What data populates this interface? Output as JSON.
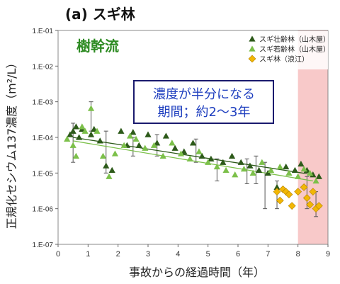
{
  "chart_data": {
    "type": "scatter",
    "panel_title": "(a) スギ林",
    "xlabel": "事故からの経過時間（年）",
    "ylabel": "正規化セシウム137濃度（m²/L）",
    "x_ticks": [
      "0",
      "1",
      "2",
      "3",
      "4",
      "5",
      "6",
      "7",
      "8",
      "9"
    ],
    "y_ticks": [
      "1.E-07",
      "1.E-06",
      "1.E-05",
      "1.E-04",
      "1.E-03",
      "1.E-02",
      "1.E-01"
    ],
    "xlim": [
      0,
      9
    ],
    "ylim": [
      1e-07,
      0.1
    ],
    "y_scale": "log",
    "shaded_region_x": [
      8,
      9
    ],
    "annotation_label": "樹幹流",
    "note_lines": [
      "濃度が半分になる",
      "期間；約2～3年"
    ],
    "legend_position": "top-right",
    "colors": {
      "series_dark": "#2d5a1a",
      "series_light": "#7cc04a",
      "series_yellow": "#f2b705",
      "shade": "#f8c9c9",
      "note_border": "#1a1a6e",
      "label_green": "#2e8b23",
      "note_text": "#1f3fbf"
    },
    "series": [
      {
        "name": "スギ壮齢林（山木屋）",
        "marker": "triangle",
        "color": "#2d5a1a",
        "points": [
          [
            0.4,
            0.00012
          ],
          [
            0.5,
            0.00015
          ],
          [
            0.6,
            0.0002
          ],
          [
            0.7,
            0.0001
          ],
          [
            0.8,
            0.00017
          ],
          [
            1.1,
            0.00012
          ],
          [
            1.2,
            0.00017
          ],
          [
            1.4,
            8e-05
          ],
          [
            1.6,
            1.6e-05
          ],
          [
            1.8,
            1.2e-05
          ],
          [
            2.1,
            0.00015
          ],
          [
            2.3,
            6e-05
          ],
          [
            2.5,
            0.00014
          ],
          [
            2.7,
            6e-05
          ],
          [
            3.0,
            0.00012
          ],
          [
            3.3,
            7e-05
          ],
          [
            3.6,
            0.00011
          ],
          [
            3.9,
            5e-05
          ],
          [
            4.2,
            4e-05
          ],
          [
            4.5,
            7e-05
          ],
          [
            4.8,
            3e-05
          ],
          [
            5.1,
            2.5e-05
          ],
          [
            5.5,
            2e-05
          ],
          [
            5.8,
            3e-05
          ],
          [
            6.1,
            2e-05
          ],
          [
            6.4,
            1.6e-05
          ],
          [
            6.7,
            1.2e-05
          ],
          [
            7.0,
            1e-05
          ],
          [
            7.3,
            4e-06
          ],
          [
            7.6,
            1.5e-05
          ],
          [
            7.9,
            1.2e-05
          ],
          [
            8.1,
            1.8e-05
          ],
          [
            8.3,
            1.2e-05
          ],
          [
            8.5,
            9e-06
          ],
          [
            8.7,
            8e-06
          ]
        ]
      },
      {
        "name": "スギ若齢林（山木屋）",
        "marker": "triangle",
        "color": "#7cc04a",
        "points": [
          [
            0.3,
            9e-05
          ],
          [
            0.5,
            6e-05
          ],
          [
            0.6,
            3e-05
          ],
          [
            0.8,
            0.0002
          ],
          [
            0.9,
            0.00015
          ],
          [
            1.1,
            0.00065
          ],
          [
            1.3,
            0.00015
          ],
          [
            1.5,
            3e-05
          ],
          [
            1.7,
            8e-06
          ],
          [
            1.9,
            3.5e-05
          ],
          [
            2.2,
            6e-05
          ],
          [
            2.4,
            0.00011
          ],
          [
            2.6,
            9e-05
          ],
          [
            2.9,
            5e-05
          ],
          [
            3.2,
            6e-05
          ],
          [
            3.5,
            3e-05
          ],
          [
            3.8,
            7e-05
          ],
          [
            4.1,
            3.5e-05
          ],
          [
            4.4,
            2.5e-05
          ],
          [
            4.7,
            4e-05
          ],
          [
            5.0,
            2e-05
          ],
          [
            5.3,
            1.5e-05
          ],
          [
            5.6,
            1.2e-05
          ],
          [
            5.9,
            9e-06
          ],
          [
            6.2,
            1.3e-05
          ],
          [
            6.5,
            1e-05
          ],
          [
            6.8,
            2e-05
          ],
          [
            7.1,
            1.2e-05
          ],
          [
            7.4,
            1.5e-05
          ],
          [
            7.7,
            1e-05
          ],
          [
            8.0,
            8e-06
          ],
          [
            8.2,
            1.3e-05
          ],
          [
            8.4,
            1e-05
          ],
          [
            8.6,
            6e-06
          ]
        ]
      },
      {
        "name": "スギ林（浪江）",
        "marker": "diamond",
        "color": "#f2b705",
        "points": [
          [
            7.3,
            3e-06
          ],
          [
            7.4,
            1.7e-06
          ],
          [
            7.5,
            3.5e-06
          ],
          [
            7.6,
            3e-06
          ],
          [
            7.7,
            2.5e-06
          ],
          [
            7.8,
            1.2e-06
          ],
          [
            8.0,
            3e-06
          ],
          [
            8.2,
            4e-06
          ],
          [
            8.3,
            2e-06
          ],
          [
            8.4,
            1.3e-06
          ],
          [
            8.5,
            3e-06
          ],
          [
            8.6,
            1e-06
          ],
          [
            8.7,
            1.2e-06
          ]
        ]
      }
    ],
    "error_bars": [
      [
        0.5,
        2e-05,
        0.00025
      ],
      [
        1.1,
        0.00015,
        0.001
      ],
      [
        1.6,
        1e-05,
        0.00015
      ],
      [
        2.5,
        3e-05,
        0.0001
      ],
      [
        3.3,
        3e-05,
        0.00012
      ],
      [
        4.6,
        2e-05,
        9e-05
      ],
      [
        5.3,
        6e-06,
        2.5e-05
      ],
      [
        6.3,
        5e-06,
        2.5e-05
      ],
      [
        6.6,
        5e-06,
        3e-05
      ],
      [
        6.9,
        1e-06,
        2e-05
      ],
      [
        7.3,
        1e-06,
        6e-06
      ],
      [
        8.3,
        1e-06,
        8e-06
      ],
      [
        8.6,
        6e-07,
        3e-06
      ]
    ],
    "trend_lines": [
      {
        "color": "#2d5a1a",
        "x": [
          0.5,
          8.5
        ],
        "y": [
          0.0001,
          9e-06
        ]
      },
      {
        "color": "#7cc04a",
        "x": [
          0.5,
          8.5
        ],
        "y": [
          8e-05,
          6e-06
        ]
      }
    ]
  }
}
